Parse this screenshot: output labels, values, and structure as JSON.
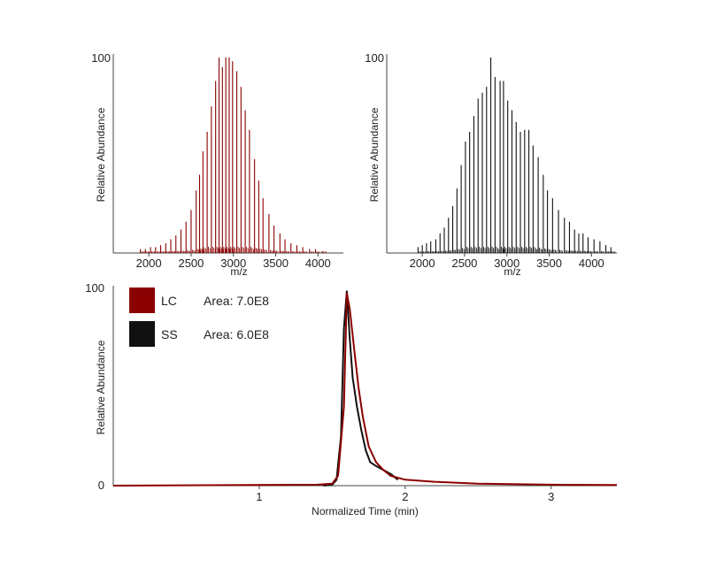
{
  "colors": {
    "lc": "#8b0000",
    "ss": "#111111",
    "axis": "#444444"
  },
  "chart_data": [
    {
      "type": "bar",
      "title": "",
      "xlabel": "m/z",
      "ylabel": "Relative Abundance",
      "xlim": [
        1580,
        4300
      ],
      "ylim": [
        0,
        100
      ],
      "x_ticks": [
        2000,
        2500,
        3000,
        3500,
        4000
      ],
      "y_ticks": [
        100
      ],
      "series": [
        {
          "color": "#8b0000",
          "peaks": [
            [
              1900,
              2
            ],
            [
              1960,
              2
            ],
            [
              2020,
              3
            ],
            [
              2080,
              3
            ],
            [
              2140,
              4
            ],
            [
              2200,
              5
            ],
            [
              2260,
              7
            ],
            [
              2320,
              9
            ],
            [
              2380,
              12
            ],
            [
              2440,
              16
            ],
            [
              2500,
              22
            ],
            [
              2560,
              32
            ],
            [
              2600,
              40
            ],
            [
              2640,
              52
            ],
            [
              2690,
              62
            ],
            [
              2740,
              75
            ],
            [
              2790,
              88
            ],
            [
              2830,
              100
            ],
            [
              2870,
              95
            ],
            [
              2910,
              100
            ],
            [
              2950,
              100
            ],
            [
              2990,
              98
            ],
            [
              3040,
              93
            ],
            [
              3090,
              85
            ],
            [
              3140,
              73
            ],
            [
              3190,
              63
            ],
            [
              3250,
              48
            ],
            [
              3300,
              37
            ],
            [
              3350,
              28
            ],
            [
              3420,
              20
            ],
            [
              3480,
              14
            ],
            [
              3550,
              10
            ],
            [
              3610,
              7
            ],
            [
              3680,
              5
            ],
            [
              3750,
              4
            ],
            [
              3820,
              3
            ],
            [
              3900,
              2
            ],
            [
              3970,
              2
            ],
            [
              4050,
              1
            ]
          ]
        }
      ]
    },
    {
      "type": "bar",
      "title": "",
      "xlabel": "m/z",
      "ylabel": "Relative Abundance",
      "xlim": [
        1580,
        4300
      ],
      "ylim": [
        0,
        100
      ],
      "x_ticks": [
        2000,
        2500,
        3000,
        3500,
        4000
      ],
      "y_ticks": [
        100
      ],
      "series": [
        {
          "color": "#111111",
          "peaks": [
            [
              1950,
              3
            ],
            [
              2000,
              4
            ],
            [
              2050,
              5
            ],
            [
              2100,
              6
            ],
            [
              2160,
              7
            ],
            [
              2210,
              10
            ],
            [
              2260,
              13
            ],
            [
              2310,
              18
            ],
            [
              2360,
              24
            ],
            [
              2410,
              33
            ],
            [
              2460,
              45
            ],
            [
              2510,
              57
            ],
            [
              2560,
              62
            ],
            [
              2610,
              70
            ],
            [
              2660,
              79
            ],
            [
              2710,
              82
            ],
            [
              2760,
              85
            ],
            [
              2810,
              100
            ],
            [
              2860,
              90
            ],
            [
              2920,
              88
            ],
            [
              2960,
              88
            ],
            [
              3010,
              78
            ],
            [
              3060,
              73
            ],
            [
              3110,
              67
            ],
            [
              3160,
              62
            ],
            [
              3210,
              63
            ],
            [
              3260,
              63
            ],
            [
              3310,
              55
            ],
            [
              3370,
              49
            ],
            [
              3430,
              40
            ],
            [
              3480,
              32
            ],
            [
              3540,
              28
            ],
            [
              3610,
              22
            ],
            [
              3680,
              18
            ],
            [
              3740,
              16
            ],
            [
              3800,
              12
            ],
            [
              3850,
              10
            ],
            [
              3900,
              10
            ],
            [
              3960,
              8
            ],
            [
              4030,
              7
            ],
            [
              4100,
              6
            ],
            [
              4170,
              4
            ],
            [
              4230,
              3
            ]
          ]
        }
      ]
    },
    {
      "type": "line",
      "title": "",
      "xlabel": "Normalized Time (min)",
      "ylabel": "Relative Abundance",
      "xlim": [
        0.0,
        3.45
      ],
      "ylim": [
        0,
        100
      ],
      "x_ticks": [
        1,
        2,
        3
      ],
      "y_ticks": [
        0,
        100
      ],
      "legend": {
        "position": "top-left"
      },
      "series": [
        {
          "name": "LC",
          "color": "#8b0000",
          "annotation": "Area: 7.0E8",
          "x": [
            0.0,
            1.4,
            1.5,
            1.54,
            1.58,
            1.6,
            1.62,
            1.65,
            1.68,
            1.71,
            1.75,
            1.8,
            1.85,
            1.9,
            2.0,
            2.2,
            2.5,
            3.0,
            3.45
          ],
          "y": [
            0,
            0.5,
            1,
            5,
            40,
            98,
            90,
            70,
            50,
            35,
            20,
            12,
            8,
            5,
            3,
            2,
            1,
            0.5,
            0.3
          ]
        },
        {
          "name": "SS",
          "color": "#111111",
          "annotation": "Area: 6.0E8",
          "x": [
            1.44,
            1.5,
            1.53,
            1.56,
            1.58,
            1.6,
            1.62,
            1.64,
            1.67,
            1.7,
            1.73,
            1.76,
            1.8,
            1.85,
            1.9,
            1.95
          ],
          "y": [
            0,
            0.5,
            3,
            25,
            80,
            99,
            75,
            55,
            40,
            28,
            18,
            12,
            10,
            8,
            6,
            3
          ]
        }
      ]
    }
  ]
}
